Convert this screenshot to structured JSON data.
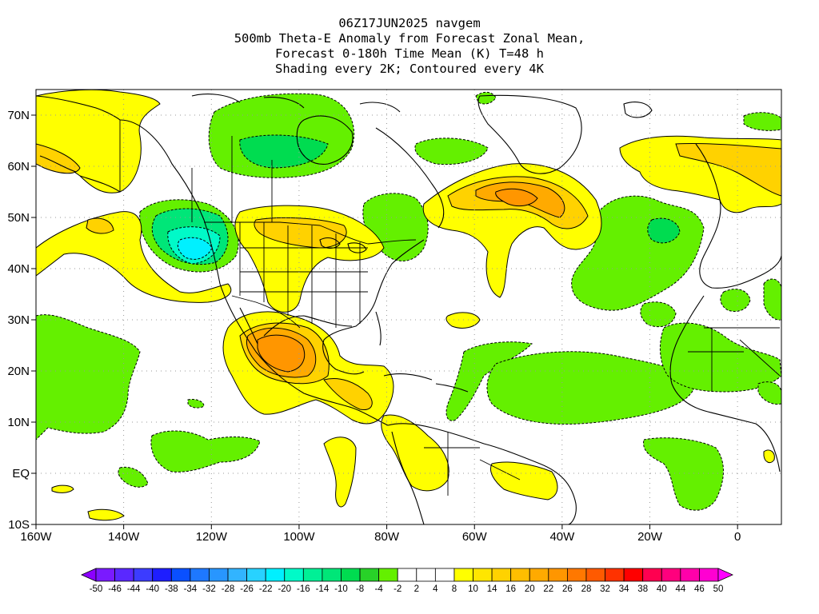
{
  "title": {
    "line1": "06Z17JUN2025 navgem",
    "line2": "500mb Theta-E Anomaly from Forecast Zonal Mean,",
    "line3": "Forecast 0-180h Time Mean (K) T=48 h",
    "line4": "Shading every 2K; Contoured every 4K"
  },
  "map": {
    "lon_range": [
      -160,
      10
    ],
    "lat_range": [
      -10,
      75
    ],
    "lon_ticks": [
      {
        "value": -160,
        "label": "160W"
      },
      {
        "value": -140,
        "label": "140W"
      },
      {
        "value": -120,
        "label": "120W"
      },
      {
        "value": -100,
        "label": "100W"
      },
      {
        "value": -80,
        "label": "80W"
      },
      {
        "value": -60,
        "label": "60W"
      },
      {
        "value": -40,
        "label": "40W"
      },
      {
        "value": -20,
        "label": "20W"
      },
      {
        "value": 0,
        "label": "0"
      }
    ],
    "lat_ticks": [
      {
        "value": 70,
        "label": "70N"
      },
      {
        "value": 60,
        "label": "60N"
      },
      {
        "value": 50,
        "label": "50N"
      },
      {
        "value": 40,
        "label": "40N"
      },
      {
        "value": 30,
        "label": "30N"
      },
      {
        "value": 20,
        "label": "20N"
      },
      {
        "value": 10,
        "label": "10N"
      },
      {
        "value": 0,
        "label": "EQ"
      },
      {
        "value": -10,
        "label": "10S"
      }
    ],
    "grid": "dotted",
    "projection": "cylindrical equidistant"
  },
  "colorbar": {
    "labels": [
      "-50",
      "-46",
      "-44",
      "-40",
      "-38",
      "-34",
      "-32",
      "-28",
      "-26",
      "-22",
      "-20",
      "-16",
      "-14",
      "-10",
      "-8",
      "-4",
      "-2",
      "2",
      "4",
      "8",
      "10",
      "14",
      "16",
      "20",
      "22",
      "26",
      "28",
      "32",
      "34",
      "38",
      "40",
      "44",
      "46",
      "50"
    ],
    "colors": [
      "#8c00ff",
      "#7a1aff",
      "#5a28ff",
      "#3c3cff",
      "#1e1eff",
      "#0a50ff",
      "#1e78ff",
      "#2896ff",
      "#32b4ff",
      "#28d2ff",
      "#00f0ff",
      "#00fac8",
      "#00f096",
      "#00e678",
      "#00dc50",
      "#28d228",
      "#64f000",
      "#ffffff",
      "#ffffff",
      "#ffffff",
      "#ffff00",
      "#ffe600",
      "#ffd200",
      "#ffbe00",
      "#ffaa00",
      "#ff9600",
      "#ff7800",
      "#ff5a00",
      "#ff3200",
      "#ff0000",
      "#ff0050",
      "#ff007d",
      "#ff00aa",
      "#ff00d2",
      "#ff00ff"
    ]
  },
  "anomaly_regions": [
    {
      "id": "ne-pacific-warm",
      "sign": "positive",
      "level": 4,
      "center": [
        -150,
        66
      ]
    },
    {
      "id": "n-pacific-warm",
      "sign": "positive",
      "level": 4,
      "center": [
        -140,
        44
      ]
    },
    {
      "id": "pacific-nw-cold",
      "sign": "negative",
      "level": -16,
      "center": [
        -124,
        43
      ]
    },
    {
      "id": "canada-cold",
      "sign": "negative",
      "level": -8,
      "center": [
        -105,
        63
      ]
    },
    {
      "id": "great-lakes-warm",
      "sign": "positive",
      "level": 8,
      "center": [
        -90,
        47
      ]
    },
    {
      "id": "mexico-warm",
      "sign": "positive",
      "level": 20,
      "center": [
        -104,
        25
      ]
    },
    {
      "id": "newfoundland-warm",
      "sign": "positive",
      "level": 20,
      "center": [
        -52,
        51
      ]
    },
    {
      "id": "greenland-east-warm",
      "sign": "positive",
      "level": 10,
      "center": [
        -10,
        61
      ]
    },
    {
      "id": "n-atlantic-cold",
      "sign": "negative",
      "level": -8,
      "center": [
        -22,
        45
      ]
    },
    {
      "id": "central-atlantic-cold",
      "sign": "negative",
      "level": -4,
      "center": [
        -40,
        18
      ]
    },
    {
      "id": "e-pacific-cold",
      "sign": "negative",
      "level": -4,
      "center": [
        -150,
        22
      ]
    },
    {
      "id": "s-america-warm",
      "sign": "positive",
      "level": 8,
      "center": [
        -70,
        2
      ]
    },
    {
      "id": "w-africa-cold",
      "sign": "negative",
      "level": -4,
      "center": [
        -10,
        2
      ]
    }
  ],
  "colors": {
    "green": "#64f000",
    "green_dark": "#00dc50",
    "yellow": "#ffff00",
    "gold": "#ffd200",
    "orange": "#ffaa00",
    "dark_orange": "#ff9600",
    "teal": "#00fac8",
    "cyan": "#00f0ff"
  }
}
